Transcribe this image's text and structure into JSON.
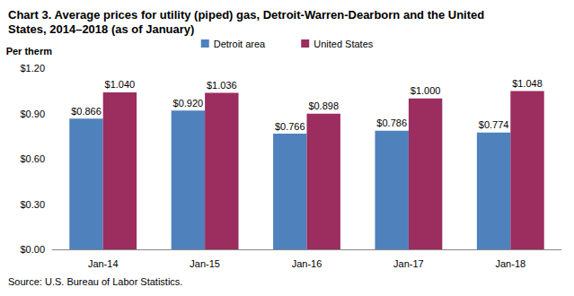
{
  "chart_data": {
    "type": "bar",
    "title": "Chart 3. Average prices for utility (piped) gas, Detroit-Warren-Dearborn and the United States, 2014–2018 (as of January)",
    "y_label": "Per therm",
    "source": "Source: U.S. Bureau of Labor Statistics.",
    "categories": [
      "Jan-14",
      "Jan-15",
      "Jan-16",
      "Jan-17",
      "Jan-18"
    ],
    "series": [
      {
        "name": "Detroit area",
        "color": "#4f81bd",
        "values": [
          0.866,
          0.92,
          0.766,
          0.786,
          0.774
        ],
        "value_labels": [
          "$0.866",
          "$0.920",
          "$0.766",
          "$0.786",
          "$0.774"
        ]
      },
      {
        "name": "United States",
        "color": "#9b2d5f",
        "values": [
          1.04,
          1.036,
          0.898,
          1.0,
          1.048
        ],
        "value_labels": [
          "$1.040",
          "$1.036",
          "$0.898",
          "$1.000",
          "$1.048"
        ]
      }
    ],
    "ylim": [
      0,
      1.2
    ],
    "yticks": [
      {
        "value": 0,
        "label": "$0.00"
      },
      {
        "value": 0.3,
        "label": "$0.30"
      },
      {
        "value": 0.6,
        "label": "$0.60"
      },
      {
        "value": 0.9,
        "label": "$0.90"
      },
      {
        "value": 1.2,
        "label": "$1.20"
      }
    ],
    "grid": false,
    "legend": "top",
    "data_labels": true
  }
}
